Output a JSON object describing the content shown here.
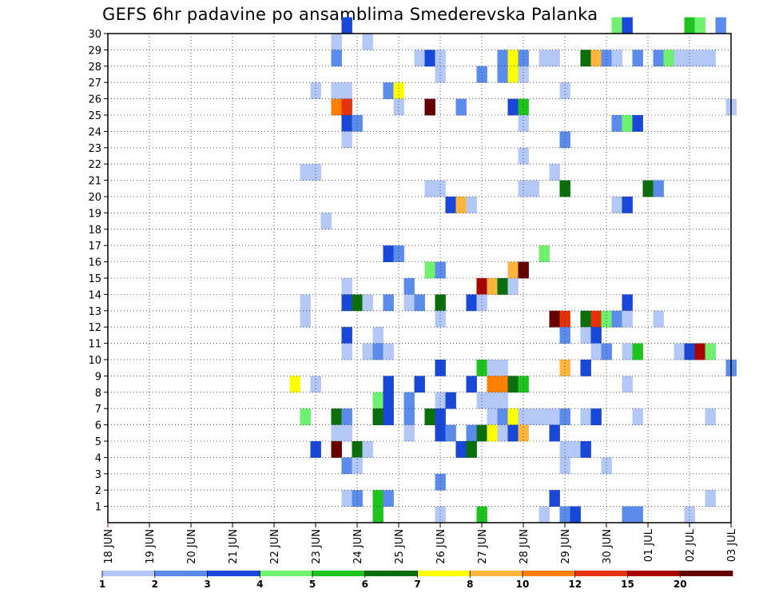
{
  "chart_data": {
    "type": "heatmap",
    "title": "GEFS 6hr padavine po ansamblima Smederevska Palanka",
    "xlabel": "",
    "ylabel": "",
    "x_ticks": [
      "18 JUN",
      "19 JUN",
      "20 JUN",
      "21 JUN",
      "22 JUN",
      "23 JUN",
      "24 JUN",
      "25 JUN",
      "26 JUN",
      "27 JUN",
      "28 JUN",
      "29 JUN",
      "30 JUN",
      "01 JUL",
      "02 JUL",
      "03 JUL"
    ],
    "y_ticks": [
      1,
      2,
      3,
      4,
      5,
      6,
      7,
      8,
      9,
      10,
      11,
      12,
      13,
      14,
      15,
      16,
      17,
      18,
      19,
      20,
      21,
      22,
      23,
      24,
      25,
      26,
      27,
      28,
      29,
      30
    ],
    "xlim": [
      0,
      60
    ],
    "ylim": [
      0,
      30
    ],
    "grid": true,
    "legend": {
      "placement": "bottom",
      "labels": [
        "1",
        "2",
        "3",
        "4",
        "5",
        "6",
        "7",
        "8",
        "10",
        "12",
        "15",
        "20"
      ],
      "colors": [
        "#b4c8f8",
        "#5c8ceb",
        "#1947d8",
        "#6ff06f",
        "#1ec31e",
        "#0a6e0a",
        "#ffff00",
        "#ffb43c",
        "#ff7f00",
        "#e6320a",
        "#aa0000",
        "#640000"
      ]
    },
    "cells_note": "x = 6-hour step index from 18 JUN 00Z, y = ensemble member, c = precipitation class index (0 = 1-2 ... 11 = >20)",
    "cells": [
      [
        23,
        30,
        2
      ],
      [
        49,
        30,
        3
      ],
      [
        50,
        30,
        2
      ],
      [
        56,
        30,
        4
      ],
      [
        57,
        30,
        3
      ],
      [
        59,
        30,
        1
      ],
      [
        22,
        29,
        0
      ],
      [
        25,
        29,
        0
      ],
      [
        22,
        28,
        1
      ],
      [
        30,
        28,
        0
      ],
      [
        31,
        28,
        2
      ],
      [
        32,
        28,
        0
      ],
      [
        38,
        28,
        1
      ],
      [
        39,
        28,
        6
      ],
      [
        40,
        28,
        1
      ],
      [
        42,
        28,
        0
      ],
      [
        43,
        28,
        0
      ],
      [
        46,
        28,
        5
      ],
      [
        47,
        28,
        7
      ],
      [
        48,
        28,
        1
      ],
      [
        49,
        28,
        0
      ],
      [
        51,
        28,
        1
      ],
      [
        53,
        28,
        1
      ],
      [
        54,
        28,
        3
      ],
      [
        55,
        28,
        0
      ],
      [
        56,
        28,
        0
      ],
      [
        57,
        28,
        0
      ],
      [
        58,
        28,
        0
      ],
      [
        32,
        27,
        0
      ],
      [
        36,
        27,
        1
      ],
      [
        38,
        27,
        1
      ],
      [
        39,
        27,
        6
      ],
      [
        40,
        27,
        0
      ],
      [
        20,
        26,
        0
      ],
      [
        22,
        26,
        0
      ],
      [
        23,
        26,
        0
      ],
      [
        27,
        26,
        1
      ],
      [
        28,
        26,
        6
      ],
      [
        44,
        26,
        0
      ],
      [
        22,
        25,
        8
      ],
      [
        23,
        25,
        9
      ],
      [
        28,
        25,
        0
      ],
      [
        31,
        25,
        11
      ],
      [
        34,
        25,
        1
      ],
      [
        39,
        25,
        2
      ],
      [
        40,
        25,
        4
      ],
      [
        60,
        25,
        0
      ],
      [
        23,
        24,
        2
      ],
      [
        24,
        24,
        1
      ],
      [
        40,
        24,
        0
      ],
      [
        49,
        24,
        1
      ],
      [
        50,
        24,
        3
      ],
      [
        51,
        24,
        2
      ],
      [
        23,
        23,
        0
      ],
      [
        44,
        23,
        1
      ],
      [
        40,
        22,
        0
      ],
      [
        19,
        21,
        0
      ],
      [
        20,
        21,
        0
      ],
      [
        43,
        21,
        0
      ],
      [
        31,
        20,
        0
      ],
      [
        32,
        20,
        0
      ],
      [
        40,
        20,
        0
      ],
      [
        41,
        20,
        0
      ],
      [
        44,
        20,
        5
      ],
      [
        52,
        20,
        5
      ],
      [
        53,
        20,
        1
      ],
      [
        33,
        19,
        2
      ],
      [
        34,
        19,
        7
      ],
      [
        35,
        19,
        0
      ],
      [
        49,
        19,
        0
      ],
      [
        50,
        19,
        2
      ],
      [
        21,
        18,
        0
      ],
      [
        27,
        16,
        2
      ],
      [
        28,
        16,
        1
      ],
      [
        42,
        16,
        3
      ],
      [
        31,
        15,
        3
      ],
      [
        32,
        15,
        1
      ],
      [
        39,
        15,
        7
      ],
      [
        40,
        15,
        11
      ],
      [
        23,
        14,
        0
      ],
      [
        29,
        14,
        1
      ],
      [
        36,
        14,
        10
      ],
      [
        37,
        14,
        7
      ],
      [
        38,
        14,
        5
      ],
      [
        39,
        14,
        0
      ],
      [
        19,
        13,
        0
      ],
      [
        23,
        13,
        2
      ],
      [
        24,
        13,
        5
      ],
      [
        25,
        13,
        0
      ],
      [
        27,
        13,
        1
      ],
      [
        29,
        13,
        0
      ],
      [
        30,
        13,
        1
      ],
      [
        32,
        13,
        5
      ],
      [
        35,
        13,
        2
      ],
      [
        36,
        13,
        0
      ],
      [
        50,
        13,
        2
      ],
      [
        19,
        12,
        0
      ],
      [
        32,
        12,
        0
      ],
      [
        43,
        12,
        11
      ],
      [
        44,
        12,
        9
      ],
      [
        46,
        12,
        5
      ],
      [
        47,
        12,
        9
      ],
      [
        48,
        12,
        3
      ],
      [
        49,
        12,
        1
      ],
      [
        50,
        12,
        0
      ],
      [
        53,
        12,
        0
      ],
      [
        23,
        11,
        2
      ],
      [
        26,
        11,
        0
      ],
      [
        44,
        11,
        1
      ],
      [
        46,
        11,
        0
      ],
      [
        47,
        11,
        2
      ],
      [
        23,
        10,
        0
      ],
      [
        25,
        10,
        0
      ],
      [
        26,
        10,
        1
      ],
      [
        27,
        10,
        0
      ],
      [
        47,
        10,
        0
      ],
      [
        48,
        10,
        1
      ],
      [
        50,
        10,
        0
      ],
      [
        51,
        10,
        4
      ],
      [
        55,
        10,
        0
      ],
      [
        56,
        10,
        2
      ],
      [
        57,
        10,
        10
      ],
      [
        58,
        10,
        3
      ],
      [
        32,
        9,
        2
      ],
      [
        36,
        9,
        4
      ],
      [
        37,
        9,
        0
      ],
      [
        38,
        9,
        0
      ],
      [
        44,
        9,
        7
      ],
      [
        46,
        9,
        2
      ],
      [
        60,
        9,
        1
      ],
      [
        18,
        8,
        6
      ],
      [
        20,
        8,
        0
      ],
      [
        27,
        8,
        2
      ],
      [
        30,
        8,
        2
      ],
      [
        35,
        8,
        2
      ],
      [
        37,
        8,
        8
      ],
      [
        38,
        8,
        8
      ],
      [
        39,
        8,
        5
      ],
      [
        40,
        8,
        4
      ],
      [
        50,
        8,
        0
      ],
      [
        26,
        7,
        3
      ],
      [
        27,
        7,
        2
      ],
      [
        29,
        7,
        1
      ],
      [
        32,
        7,
        0
      ],
      [
        33,
        7,
        2
      ],
      [
        36,
        7,
        0
      ],
      [
        37,
        7,
        0
      ],
      [
        38,
        7,
        0
      ],
      [
        19,
        6,
        3
      ],
      [
        22,
        6,
        5
      ],
      [
        23,
        6,
        1
      ],
      [
        26,
        6,
        5
      ],
      [
        27,
        6,
        2
      ],
      [
        29,
        6,
        1
      ],
      [
        31,
        6,
        5
      ],
      [
        32,
        6,
        2
      ],
      [
        37,
        6,
        0
      ],
      [
        38,
        6,
        1
      ],
      [
        39,
        6,
        6
      ],
      [
        40,
        6,
        0
      ],
      [
        41,
        6,
        0
      ],
      [
        42,
        6,
        0
      ],
      [
        43,
        6,
        0
      ],
      [
        44,
        6,
        1
      ],
      [
        46,
        6,
        0
      ],
      [
        47,
        6,
        2
      ],
      [
        51,
        6,
        0
      ],
      [
        58,
        6,
        0
      ],
      [
        22,
        5,
        0
      ],
      [
        23,
        5,
        0
      ],
      [
        29,
        5,
        0
      ],
      [
        32,
        5,
        2
      ],
      [
        33,
        5,
        1
      ],
      [
        35,
        5,
        1
      ],
      [
        36,
        5,
        5
      ],
      [
        37,
        5,
        6
      ],
      [
        38,
        5,
        0
      ],
      [
        39,
        5,
        2
      ],
      [
        40,
        5,
        7
      ],
      [
        43,
        5,
        2
      ],
      [
        20,
        4,
        2
      ],
      [
        22,
        4,
        11
      ],
      [
        24,
        4,
        5
      ],
      [
        25,
        4,
        0
      ],
      [
        34,
        4,
        2
      ],
      [
        35,
        4,
        5
      ],
      [
        44,
        4,
        0
      ],
      [
        45,
        4,
        0
      ],
      [
        46,
        4,
        2
      ],
      [
        23,
        3,
        1
      ],
      [
        24,
        3,
        0
      ],
      [
        44,
        3,
        0
      ],
      [
        48,
        3,
        0
      ],
      [
        32,
        2,
        1
      ],
      [
        23,
        1,
        0
      ],
      [
        24,
        1,
        1
      ],
      [
        26,
        1,
        4
      ],
      [
        27,
        1,
        1
      ],
      [
        43,
        1,
        2
      ],
      [
        58,
        1,
        0
      ],
      [
        26,
        0,
        4
      ],
      [
        32,
        0,
        0
      ],
      [
        36,
        0,
        4
      ],
      [
        42,
        0,
        0
      ],
      [
        44,
        0,
        1
      ],
      [
        45,
        0,
        2
      ],
      [
        50,
        0,
        1
      ],
      [
        51,
        0,
        1
      ],
      [
        56,
        0,
        0
      ]
    ]
  }
}
